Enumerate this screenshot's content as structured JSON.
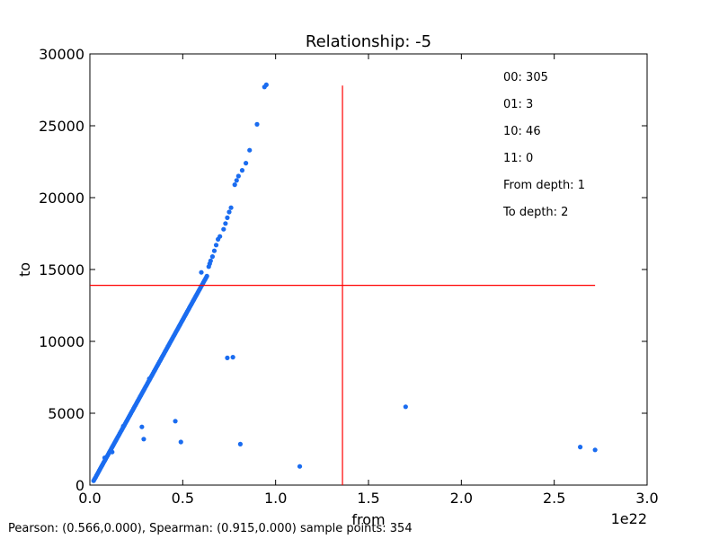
{
  "chart_data": {
    "type": "scatter",
    "title": "Relationship: -5",
    "xlabel": "from",
    "ylabel": "to",
    "x_offset_label": "1e22",
    "xlim": [
      0,
      3.0
    ],
    "ylim": [
      0,
      30000
    ],
    "x_ticks": [
      "0.0",
      "0.5",
      "1.0",
      "1.5",
      "2.0",
      "2.5",
      "3.0"
    ],
    "x_tick_values": [
      0,
      0.5,
      1.0,
      1.5,
      2.0,
      2.5,
      3.0
    ],
    "y_ticks": [
      "0",
      "5000",
      "10000",
      "15000",
      "20000",
      "25000",
      "30000"
    ],
    "y_tick_values": [
      0,
      5000,
      10000,
      15000,
      20000,
      25000,
      30000
    ],
    "grid": false,
    "point_color": "#1a6cf0",
    "reference_line_color": "#ff0000",
    "reference_lines": {
      "vertical_x": 1.36,
      "vertical_y_range": [
        0,
        27800
      ],
      "horizontal_y": 13900,
      "horizontal_x_range": [
        0,
        2.72
      ]
    },
    "annotations": [
      "00: 305",
      "01: 3",
      "10: 46",
      "11: 0",
      "From depth: 1",
      "To depth: 2"
    ],
    "points": [
      [
        0.02,
        300
      ],
      [
        0.025,
        420
      ],
      [
        0.03,
        520
      ],
      [
        0.035,
        650
      ],
      [
        0.04,
        760
      ],
      [
        0.045,
        880
      ],
      [
        0.05,
        1000
      ],
      [
        0.055,
        1120
      ],
      [
        0.06,
        1240
      ],
      [
        0.065,
        1350
      ],
      [
        0.07,
        1470
      ],
      [
        0.075,
        1590
      ],
      [
        0.08,
        1700
      ],
      [
        0.085,
        1820
      ],
      [
        0.09,
        1940
      ],
      [
        0.095,
        2050
      ],
      [
        0.1,
        2170
      ],
      [
        0.105,
        2290
      ],
      [
        0.11,
        2400
      ],
      [
        0.115,
        2520
      ],
      [
        0.12,
        2640
      ],
      [
        0.125,
        2750
      ],
      [
        0.13,
        2870
      ],
      [
        0.135,
        2990
      ],
      [
        0.14,
        3100
      ],
      [
        0.145,
        3220
      ],
      [
        0.15,
        3340
      ],
      [
        0.155,
        3450
      ],
      [
        0.16,
        3570
      ],
      [
        0.165,
        3690
      ],
      [
        0.17,
        3800
      ],
      [
        0.175,
        3920
      ],
      [
        0.18,
        4040
      ],
      [
        0.185,
        4150
      ],
      [
        0.19,
        4270
      ],
      [
        0.195,
        4390
      ],
      [
        0.2,
        4500
      ],
      [
        0.205,
        4620
      ],
      [
        0.21,
        4740
      ],
      [
        0.215,
        4850
      ],
      [
        0.22,
        4970
      ],
      [
        0.225,
        5090
      ],
      [
        0.23,
        5200
      ],
      [
        0.235,
        5320
      ],
      [
        0.24,
        5440
      ],
      [
        0.245,
        5550
      ],
      [
        0.25,
        5670
      ],
      [
        0.255,
        5790
      ],
      [
        0.26,
        5900
      ],
      [
        0.265,
        6020
      ],
      [
        0.27,
        6140
      ],
      [
        0.275,
        6250
      ],
      [
        0.28,
        6370
      ],
      [
        0.285,
        6490
      ],
      [
        0.29,
        6600
      ],
      [
        0.295,
        6720
      ],
      [
        0.3,
        6840
      ],
      [
        0.305,
        6950
      ],
      [
        0.31,
        7070
      ],
      [
        0.315,
        7190
      ],
      [
        0.32,
        7300
      ],
      [
        0.325,
        7420
      ],
      [
        0.33,
        7540
      ],
      [
        0.335,
        7650
      ],
      [
        0.34,
        7770
      ],
      [
        0.345,
        7890
      ],
      [
        0.35,
        8000
      ],
      [
        0.355,
        8120
      ],
      [
        0.36,
        8240
      ],
      [
        0.365,
        8350
      ],
      [
        0.37,
        8470
      ],
      [
        0.375,
        8590
      ],
      [
        0.38,
        8700
      ],
      [
        0.385,
        8820
      ],
      [
        0.39,
        8940
      ],
      [
        0.395,
        9050
      ],
      [
        0.4,
        9170
      ],
      [
        0.405,
        9290
      ],
      [
        0.41,
        9400
      ],
      [
        0.415,
        9520
      ],
      [
        0.42,
        9640
      ],
      [
        0.425,
        9750
      ],
      [
        0.43,
        9870
      ],
      [
        0.435,
        9990
      ],
      [
        0.44,
        10100
      ],
      [
        0.445,
        10220
      ],
      [
        0.45,
        10340
      ],
      [
        0.455,
        10450
      ],
      [
        0.46,
        10570
      ],
      [
        0.465,
        10690
      ],
      [
        0.47,
        10800
      ],
      [
        0.475,
        10920
      ],
      [
        0.48,
        11040
      ],
      [
        0.485,
        11150
      ],
      [
        0.49,
        11270
      ],
      [
        0.495,
        11390
      ],
      [
        0.5,
        11500
      ],
      [
        0.505,
        11620
      ],
      [
        0.51,
        11740
      ],
      [
        0.515,
        11850
      ],
      [
        0.52,
        11970
      ],
      [
        0.525,
        12090
      ],
      [
        0.53,
        12200
      ],
      [
        0.535,
        12320
      ],
      [
        0.54,
        12440
      ],
      [
        0.545,
        12550
      ],
      [
        0.55,
        12670
      ],
      [
        0.555,
        12790
      ],
      [
        0.56,
        12900
      ],
      [
        0.565,
        13020
      ],
      [
        0.57,
        13140
      ],
      [
        0.575,
        13250
      ],
      [
        0.58,
        13370
      ],
      [
        0.585,
        13490
      ],
      [
        0.59,
        13600
      ],
      [
        0.595,
        13720
      ],
      [
        0.6,
        13840
      ],
      [
        0.605,
        13950
      ],
      [
        0.61,
        14070
      ],
      [
        0.615,
        14190
      ],
      [
        0.62,
        14300
      ],
      [
        0.625,
        14420
      ],
      [
        0.63,
        14540
      ],
      [
        0.64,
        15200
      ],
      [
        0.645,
        15400
      ],
      [
        0.65,
        15600
      ],
      [
        0.66,
        15900
      ],
      [
        0.67,
        16300
      ],
      [
        0.68,
        16700
      ],
      [
        0.69,
        17100
      ],
      [
        0.7,
        17300
      ],
      [
        0.72,
        17800
      ],
      [
        0.73,
        18200
      ],
      [
        0.74,
        18600
      ],
      [
        0.75,
        19000
      ],
      [
        0.76,
        19300
      ],
      [
        0.78,
        20900
      ],
      [
        0.79,
        21200
      ],
      [
        0.8,
        21500
      ],
      [
        0.82,
        21900
      ],
      [
        0.84,
        22400
      ],
      [
        0.86,
        23300
      ],
      [
        0.9,
        25100
      ],
      [
        0.94,
        27700
      ],
      [
        0.95,
        27850
      ],
      [
        0.08,
        1900
      ],
      [
        0.12,
        2300
      ],
      [
        0.18,
        4100
      ],
      [
        0.32,
        7400
      ],
      [
        0.28,
        4050
      ],
      [
        0.29,
        3200
      ],
      [
        0.46,
        4450
      ],
      [
        0.49,
        3000
      ],
      [
        0.6,
        14800
      ],
      [
        0.74,
        8850
      ],
      [
        0.77,
        8900
      ],
      [
        0.81,
        2850
      ],
      [
        1.13,
        1300
      ],
      [
        1.7,
        5450
      ],
      [
        2.64,
        2650
      ],
      [
        2.72,
        2450
      ]
    ]
  },
  "footer": {
    "text": "Pearson: (0.566,0.000), Spearman: (0.915,0.000) sample points: 354"
  }
}
